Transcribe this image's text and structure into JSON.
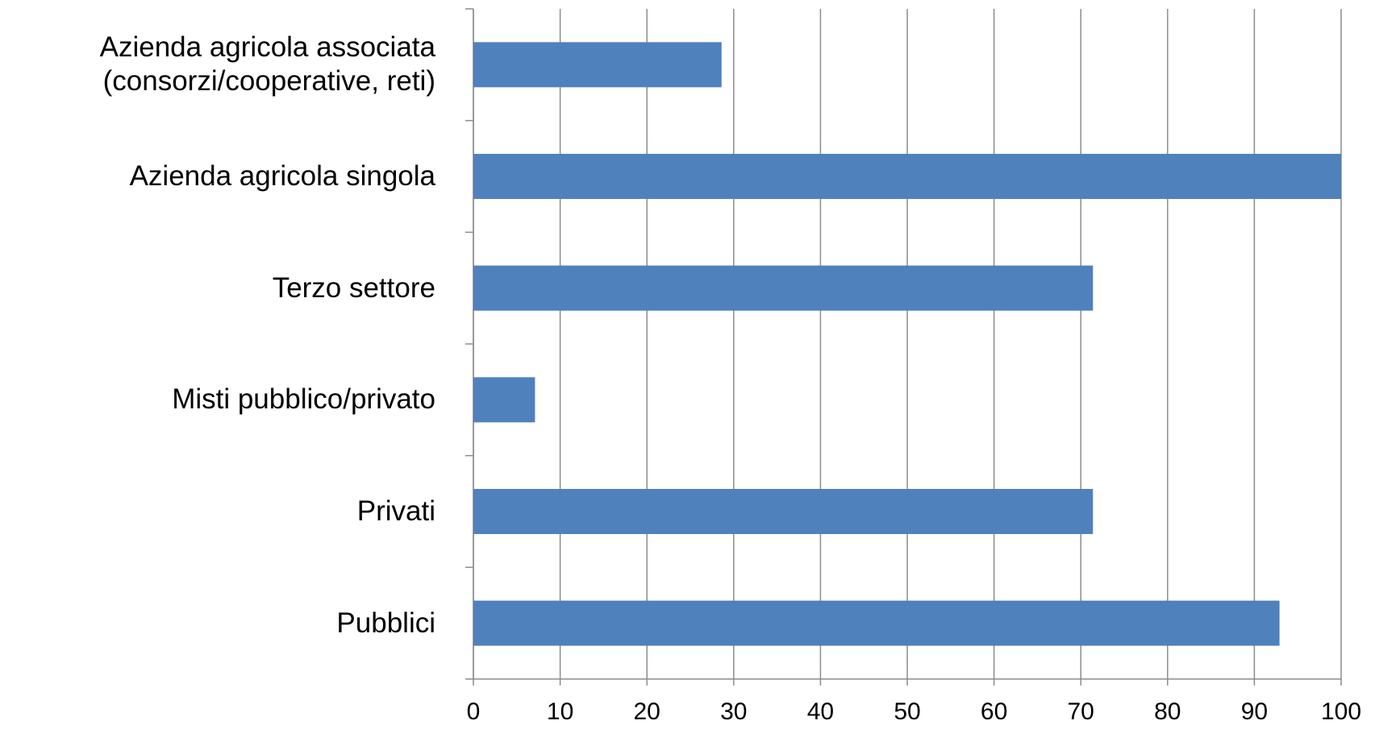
{
  "chart_data": {
    "type": "bar",
    "orientation": "horizontal",
    "categories": [
      "Azienda agricola associata (consorzi/cooperative, reti)",
      "Azienda agricola singola",
      "Terzo settore",
      "Misti pubblico/privato",
      "Privati",
      "Pubblici"
    ],
    "values": [
      28.6,
      100,
      71.4,
      7.1,
      71.4,
      92.9
    ],
    "color": "#4f81bd",
    "xlim": [
      0,
      100
    ],
    "xticks": [
      0,
      10,
      20,
      30,
      40,
      50,
      60,
      70,
      80,
      90,
      100
    ],
    "grid": true
  }
}
